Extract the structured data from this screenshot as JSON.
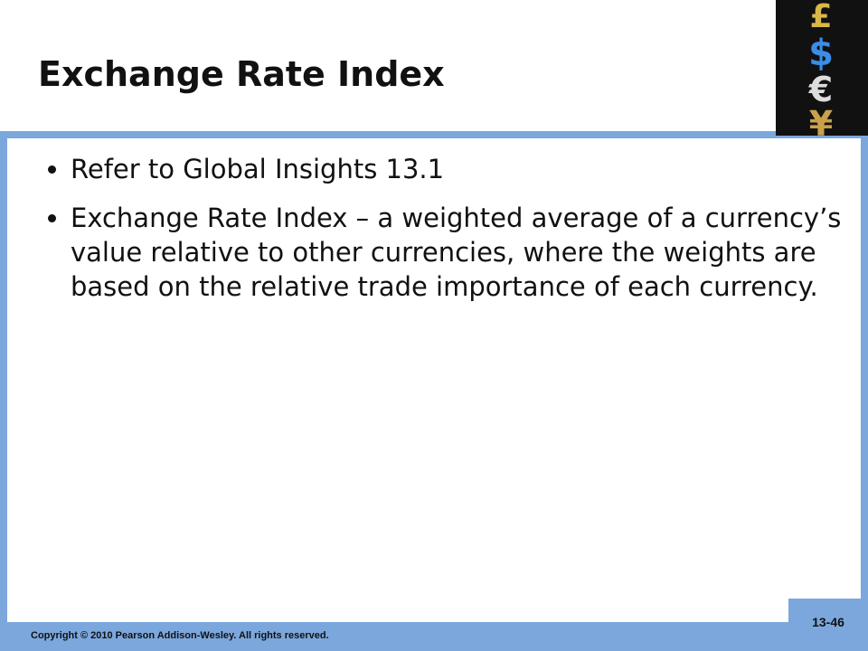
{
  "header": {
    "title": "Exchange Rate Index"
  },
  "bullets": [
    "Refer to Global Insights 13.1",
    "Exchange Rate Index – a weighted average of a currency’s value relative to other currencies, where the weights are based on the relative trade importance of each currency."
  ],
  "footer": {
    "copyright": "Copyright © 2010 Pearson Addison-Wesley. All rights reserved.",
    "page": "13-46"
  }
}
